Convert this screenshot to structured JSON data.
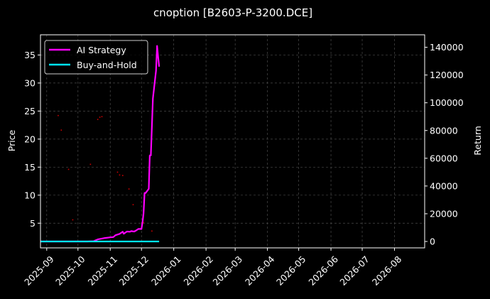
{
  "chart_data": {
    "type": "line",
    "title": "cnoption [B2603-P-3200.DCE]",
    "xlabel": "",
    "ylabel_left": "Price",
    "ylabel_right": "Return",
    "x_range": [
      "2025-08-26",
      "2026-08-30"
    ],
    "x_ticks": [
      "2025-09",
      "2025-10",
      "2025-11",
      "2025-12",
      "2026-01",
      "2026-02",
      "2026-03",
      "2026-04",
      "2026-05",
      "2026-06",
      "2026-07",
      "2026-08"
    ],
    "ylim_left": [
      0.6,
      38.6
    ],
    "y_ticks_left": [
      5,
      10,
      15,
      20,
      25,
      30,
      35
    ],
    "ylim_right": [
      -4600,
      149000
    ],
    "y_ticks_right": [
      0,
      20000,
      40000,
      60000,
      80000,
      100000,
      120000,
      140000
    ],
    "grid": true,
    "legend_position": "upper left",
    "series": [
      {
        "name": "AI Strategy",
        "axis": "right",
        "color": "#ff00ff",
        "x": [
          "2025-08-26",
          "2025-09-08",
          "2025-09-22",
          "2025-10-10",
          "2025-10-16",
          "2025-10-20",
          "2025-10-27",
          "2025-11-01",
          "2025-11-04",
          "2025-11-06",
          "2025-11-10",
          "2025-11-13",
          "2025-11-14",
          "2025-11-17",
          "2025-11-20",
          "2025-11-21",
          "2025-11-24",
          "2025-11-26",
          "2025-11-28",
          "2025-12-01",
          "2025-12-02",
          "2025-12-03",
          "2025-12-04",
          "2025-12-05",
          "2025-12-08",
          "2025-12-09",
          "2025-12-10",
          "2025-12-11",
          "2025-12-12",
          "2025-12-15",
          "2025-12-16",
          "2025-12-17",
          "2025-12-18"
        ],
        "values": [
          0,
          0,
          0,
          0,
          200,
          1500,
          2500,
          3000,
          3200,
          4500,
          5500,
          7000,
          5600,
          7200,
          7000,
          7500,
          7200,
          8000,
          9000,
          9000,
          14000,
          20000,
          35000,
          35000,
          38000,
          62000,
          62000,
          83000,
          103000,
          123000,
          141000,
          133000,
          126000
        ]
      },
      {
        "name": "Buy-and-Hold",
        "axis": "right",
        "color": "#00e5ff",
        "x": [
          "2025-08-26",
          "2025-12-18"
        ],
        "values": [
          0,
          0
        ]
      },
      {
        "name": "",
        "axis": "left",
        "color": "#cc0000",
        "kind": "scatter",
        "x": [
          "2025-09-12",
          "2025-09-15",
          "2025-09-22",
          "2025-09-26",
          "2025-10-13",
          "2025-10-20",
          "2025-10-22",
          "2025-10-24",
          "2025-11-08",
          "2025-11-10",
          "2025-11-13",
          "2025-11-19",
          "2025-11-23",
          "2025-12-03",
          "2025-12-11"
        ],
        "values": [
          24.2,
          21.6,
          14.6,
          5.6,
          15.5,
          23.5,
          23.9,
          24.0,
          14.1,
          13.6,
          13.5,
          11.1,
          8.3,
          5.1,
          3.6
        ]
      }
    ]
  }
}
